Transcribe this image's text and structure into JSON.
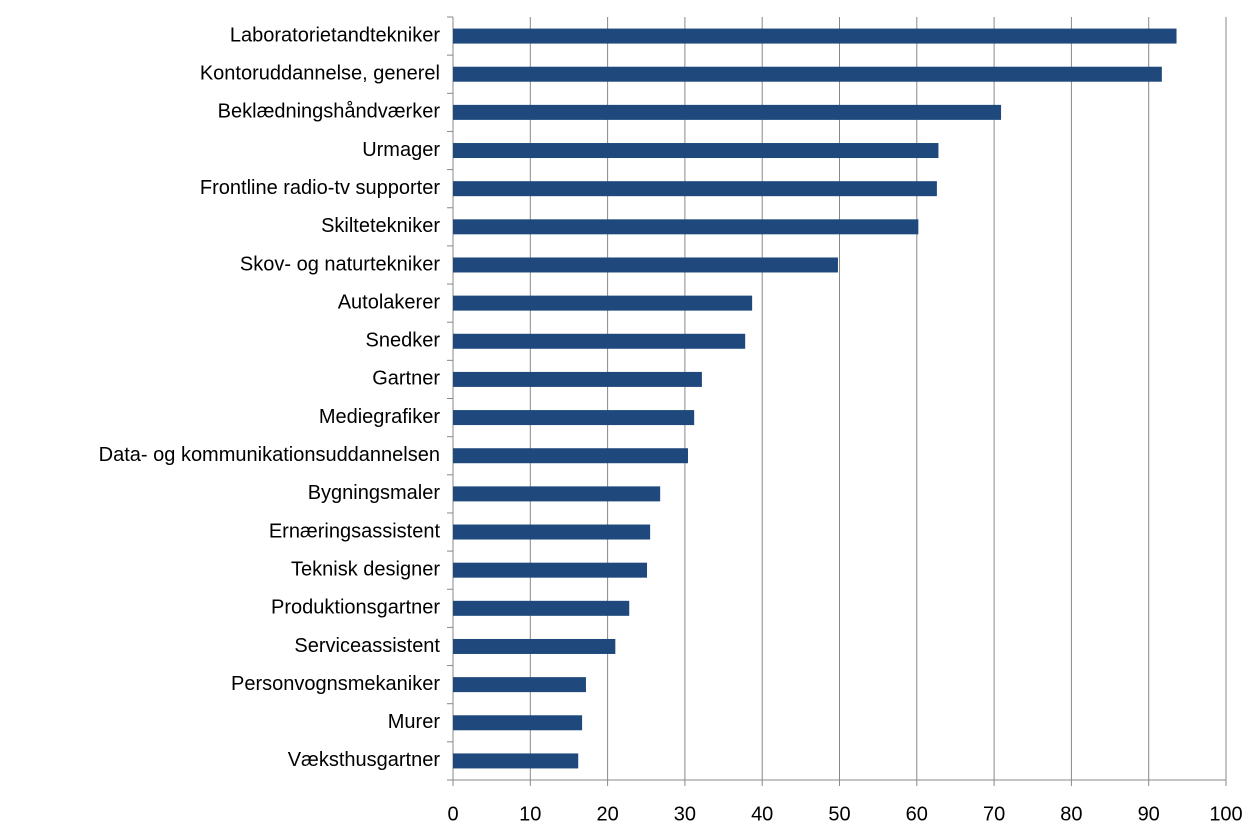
{
  "chart_data": {
    "type": "barh",
    "categories": [
      "Laboratorietandtekniker",
      "Kontoruddannelse, generel",
      "Beklædningshåndværker",
      "Urmager",
      "Frontline radio-tv supporter",
      "Skiltetekniker",
      "Skov- og naturtekniker",
      "Autolakerer",
      "Snedker",
      "Gartner",
      "Mediegrafiker",
      "Data- og kommunikationsuddannelsen",
      "Bygningsmaler",
      "Ernæringsassistent",
      "Teknisk designer",
      "Produktionsgartner",
      "Serviceassistent",
      "Personvognsmekaniker",
      "Murer",
      "Væksthusgartner"
    ],
    "values": [
      93.6,
      91.7,
      70.9,
      62.8,
      62.6,
      60.2,
      49.8,
      38.7,
      37.8,
      32.2,
      31.2,
      30.4,
      26.8,
      25.5,
      25.1,
      22.8,
      21.0,
      17.2,
      16.7,
      16.2
    ],
    "color": "#1f497d",
    "xlim": [
      0,
      100
    ],
    "xticks": [
      0,
      10,
      20,
      30,
      40,
      50,
      60,
      70,
      80,
      90,
      100
    ],
    "grid": true
  }
}
